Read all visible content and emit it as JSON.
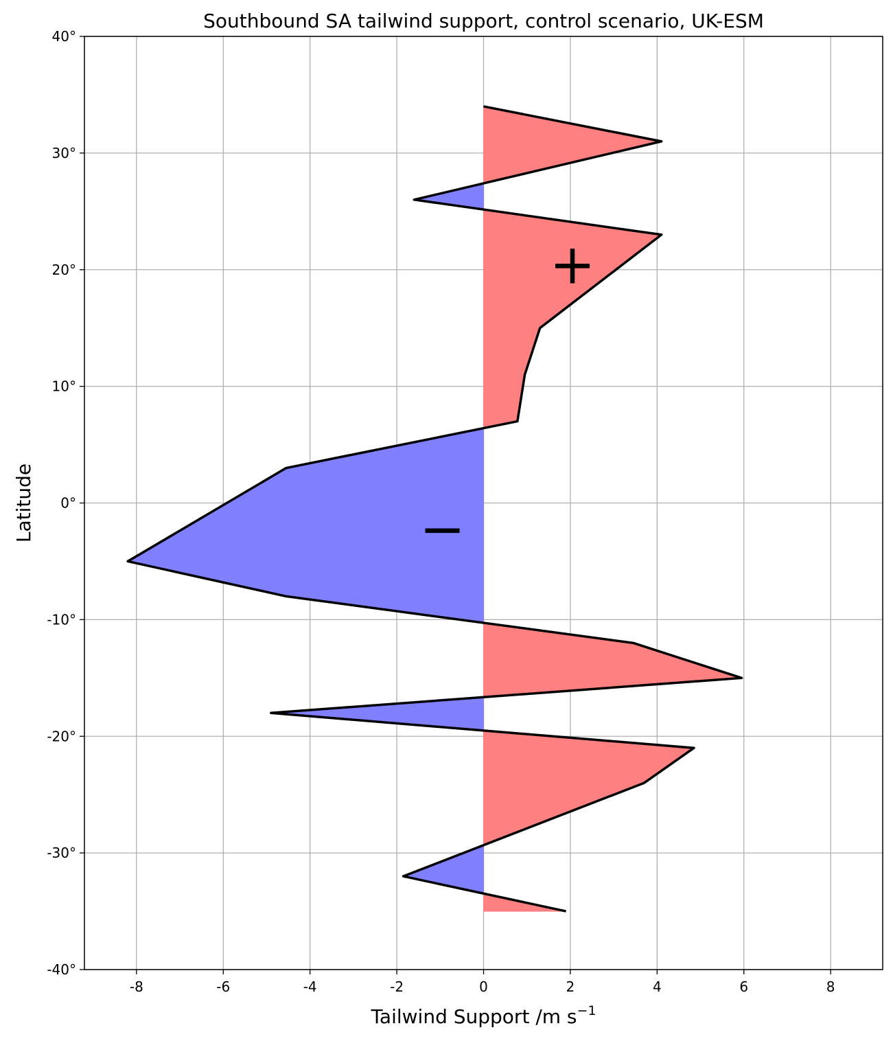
{
  "chart_data": {
    "type": "area",
    "title": "Southbound SA tailwind support, control scenario, UK-ESM",
    "xlabel": "Tailwind Support /m s",
    "xlabel_superscript": "−1",
    "ylabel": "Latitude",
    "xlim": [
      -9.2,
      9.2
    ],
    "ylim": [
      -40,
      40
    ],
    "x_ticks": [
      -8,
      -6,
      -4,
      -2,
      0,
      2,
      4,
      6,
      8
    ],
    "x_tick_labels": [
      "-8",
      "-6",
      "-4",
      "-2",
      "0",
      "2",
      "4",
      "6",
      "8"
    ],
    "y_ticks": [
      40,
      30,
      20,
      10,
      0,
      -10,
      -20,
      -30,
      -40
    ],
    "y_tick_labels": [
      "40°",
      "30°",
      "20°",
      "10°",
      "0°",
      "-10°",
      "-20°",
      "-30°",
      "-40°"
    ],
    "grid": true,
    "colors": {
      "positive": "#ff8080",
      "negative": "#8080ff",
      "line": "#000000",
      "grid": "#b0b0b0"
    },
    "series": [
      {
        "latitude": [
          34,
          31,
          26,
          23,
          15,
          11,
          7,
          3,
          -5,
          -8,
          -12,
          -15,
          -18,
          -21,
          -24,
          -32,
          -35
        ],
        "values": [
          0.0,
          4.1,
          -1.6,
          4.1,
          1.3,
          0.95,
          0.78,
          -4.55,
          -8.2,
          -4.55,
          3.45,
          5.95,
          -4.9,
          4.85,
          3.7,
          -1.85,
          1.9
        ]
      }
    ],
    "annotations": [
      {
        "text": "+",
        "x": 2.05,
        "y": 20.5
      },
      {
        "text": "−",
        "x": -0.95,
        "y": -2.2
      }
    ]
  }
}
